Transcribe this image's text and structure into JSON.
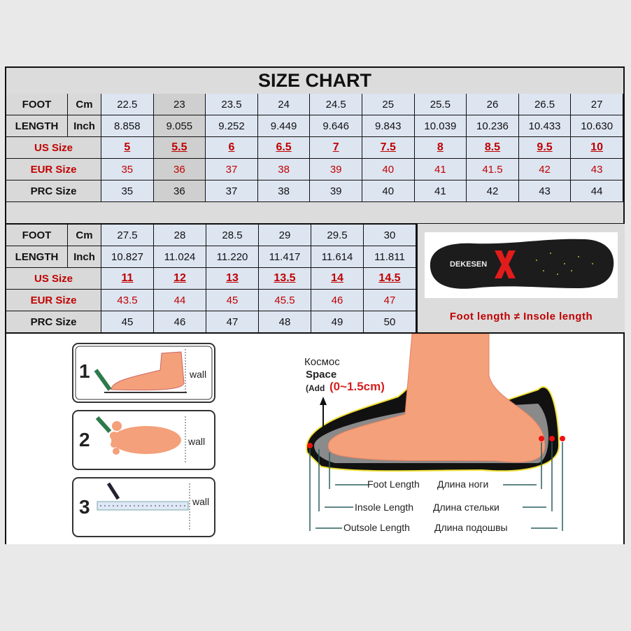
{
  "title": "SIZE  CHART",
  "labels": {
    "foot": "FOOT",
    "length": "LENGTH",
    "cm": "Cm",
    "inch": "Inch",
    "us": "US  Size",
    "eur": "EUR  Size",
    "prc": "PRC  Size"
  },
  "chart_data": {
    "type": "table",
    "title": "SIZE  CHART",
    "columns": [
      "Cm",
      "Inch",
      "US Size",
      "EUR Size",
      "PRC Size"
    ],
    "table1": {
      "cm": [
        "22.5",
        "23",
        "23.5",
        "24",
        "24.5",
        "25",
        "25.5",
        "26",
        "26.5",
        "27"
      ],
      "inch": [
        "8.858",
        "9.055",
        "9.252",
        "9.449",
        "9.646",
        "9.843",
        "10.039",
        "10.236",
        "10.433",
        "10.630"
      ],
      "us": [
        "5",
        "5.5",
        "6",
        "6.5",
        "7",
        "7.5",
        "8",
        "8.5",
        "9.5",
        "10"
      ],
      "eur": [
        "35",
        "36",
        "37",
        "38",
        "39",
        "40",
        "41",
        "41.5",
        "42",
        "43"
      ],
      "prc": [
        "35",
        "36",
        "37",
        "38",
        "39",
        "40",
        "41",
        "42",
        "43",
        "44"
      ]
    },
    "table2": {
      "cm": [
        "27.5",
        "28",
        "28.5",
        "29",
        "29.5",
        "30"
      ],
      "inch": [
        "10.827",
        "11.024",
        "11.220",
        "11.417",
        "11.614",
        "11.811"
      ],
      "us": [
        "11",
        "12",
        "13",
        "13.5",
        "14",
        "14.5"
      ],
      "eur": [
        "43.5",
        "44",
        "45",
        "45.5",
        "46",
        "47"
      ],
      "prc": [
        "45",
        "46",
        "47",
        "48",
        "49",
        "50"
      ]
    }
  },
  "insole": {
    "brand": "DEKESEN",
    "caption": "Foot length  ≠  Insole length"
  },
  "steps": [
    {
      "num": "1",
      "label": "wall"
    },
    {
      "num": "2",
      "label": "wall"
    },
    {
      "num": "3",
      "label": "wall"
    }
  ],
  "diagram": {
    "space_ru": "Космос",
    "space_en": "Space",
    "add": "(Add",
    "add_value": "(0~1.5cm)",
    "foot_length": "Foot Length",
    "foot_length_ru": "Длина ноги",
    "insole_length": "Insole Length",
    "insole_length_ru": "Длина стельки",
    "outsole_length": "Outsole Length",
    "outsole_length_ru": "Длина подошвы"
  },
  "colors": {
    "cell": "#dde5f1",
    "highlight_col": "#cfcfcf",
    "label": "#d9d9d9",
    "red": "#c00000",
    "skin": "#f4a07a"
  }
}
